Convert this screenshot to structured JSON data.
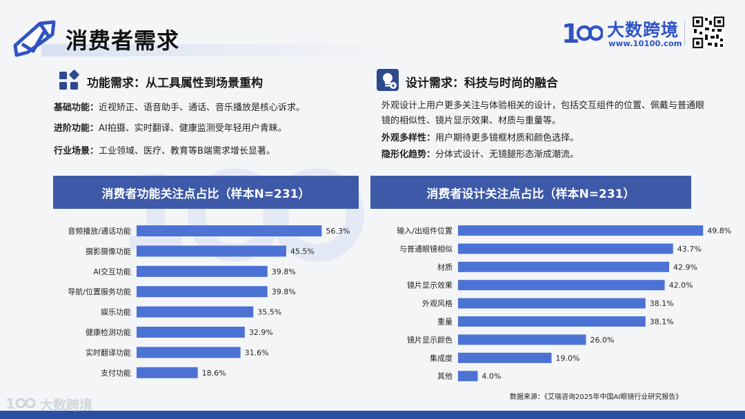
{
  "page": {
    "title": "消费者需求",
    "brand_name": "大数跨境",
    "brand_url": "www.10100.com",
    "footer_brand": "大数跨境",
    "source": "数据来源：《艾瑞咨询2025年中国AI眼镜行业研究报告》",
    "accent": "#3d59a8",
    "bar_color": "#4c72d4"
  },
  "left": {
    "section_title": "功能需求：从工具属性到场景重构",
    "items": [
      {
        "label": "基础功能：",
        "text": "近视矫正、语音助手、通话、音乐播放是核心诉求。"
      },
      {
        "label": "进阶功能：",
        "text": "AI拍摄、实时翻译、健康监测受年轻用户青睐。"
      },
      {
        "label": "行业场景：",
        "text": "工业领域、医疗、教育等B端需求增长显著。"
      }
    ]
  },
  "right": {
    "section_title": "设计需求：科技与时尚的融合",
    "intro": "外观设计上用户更多关注与体验相关的设计，包括交互组件的位置、佩戴与普通眼镜的相似性、镜片显示效果、材质与重量等。",
    "items": [
      {
        "label": "外观多样性：",
        "text": "用户期待更多镜框材质和颜色选择。"
      },
      {
        "label": "隐形化趋势：",
        "text": "分体式设计、无镜腿形态渐成潮流。"
      }
    ]
  },
  "chart_data": [
    {
      "type": "bar",
      "orientation": "horizontal",
      "title": "消费者功能关注点占比（样本N=231）",
      "categories": [
        "音频播放/通话功能",
        "摄影摄像功能",
        "AI交互功能",
        "导航/位置服务功能",
        "娱乐功能",
        "健康检测功能",
        "实时翻译功能",
        "支付功能"
      ],
      "values": [
        56.3,
        45.5,
        39.8,
        39.8,
        35.5,
        32.9,
        31.6,
        18.6
      ],
      "labels": [
        "56.3%",
        "45.5%",
        "39.8%",
        "39.8%",
        "35.5%",
        "32.9%",
        "31.6%",
        "18.6%"
      ],
      "xlim": [
        0,
        60
      ],
      "grid": false
    },
    {
      "type": "bar",
      "orientation": "horizontal",
      "title": "消费者设计关注点占比（样本N=231）",
      "categories": [
        "输入/出组件位置",
        "与普通眼镜相似",
        "材质",
        "镜片显示效果",
        "外观风格",
        "重量",
        "镜片显示颜色",
        "集成度",
        "其他"
      ],
      "values": [
        49.8,
        43.7,
        42.9,
        42.0,
        38.1,
        38.1,
        26.0,
        19.0,
        4.0
      ],
      "labels": [
        "49.8%",
        "43.7%",
        "42.9%",
        "42.0%",
        "38.1%",
        "38.1%",
        "26.0%",
        "19.0%",
        "4.0%"
      ],
      "xlim": [
        0,
        60
      ],
      "grid": false
    }
  ]
}
